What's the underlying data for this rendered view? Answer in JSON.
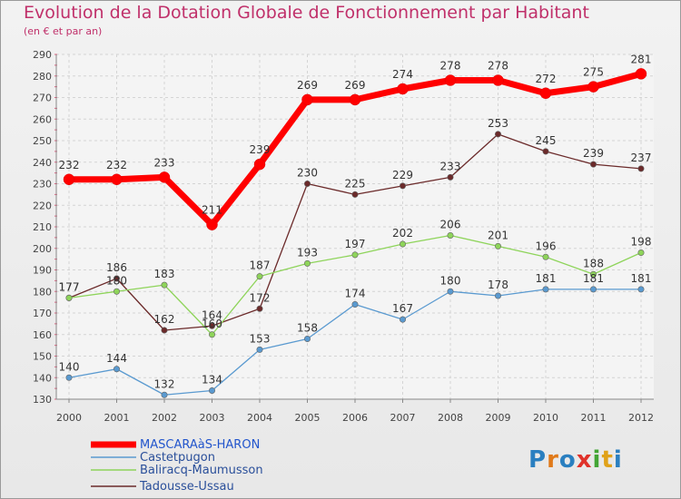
{
  "title": "Evolution de la Dotation Globale de Fonctionnement par Habitant",
  "subtitle": "(en € et par an)",
  "logo_text": "Proxiti",
  "chart_data": {
    "type": "line",
    "title": "Evolution de la Dotation Globale de Fonctionnement par Habitant",
    "ylabel": "(en € et par an)",
    "xlabel": "",
    "ylim": [
      130,
      290
    ],
    "yticks": [
      130,
      140,
      150,
      160,
      170,
      180,
      190,
      200,
      210,
      220,
      230,
      240,
      250,
      260,
      270,
      280,
      290
    ],
    "categories": [
      "2000",
      "2001",
      "2002",
      "2003",
      "2004",
      "2005",
      "2006",
      "2007",
      "2008",
      "2009",
      "2010",
      "2011",
      "2012"
    ],
    "grid": true,
    "legend_position": "bottom-left",
    "series": [
      {
        "name": "MASCARAàS-HARON",
        "color": "#ff0000",
        "values": [
          232,
          232,
          233,
          211,
          239,
          269,
          269,
          274,
          278,
          278,
          272,
          275,
          281
        ]
      },
      {
        "name": "Castetpugon",
        "color": "#5a9ad0",
        "values": [
          140,
          144,
          132,
          134,
          153,
          158,
          174,
          167,
          180,
          178,
          181,
          181,
          181
        ]
      },
      {
        "name": "Baliracq-Maumusson",
        "color": "#8ed45a",
        "values": [
          177,
          180,
          183,
          160,
          187,
          193,
          197,
          202,
          206,
          201,
          196,
          188,
          198
        ]
      },
      {
        "name": "Tadousse-Ussau",
        "color": "#6b2a2a",
        "values": [
          177,
          186,
          162,
          164,
          172,
          230,
          225,
          229,
          233,
          253,
          245,
          239,
          237
        ]
      }
    ]
  }
}
